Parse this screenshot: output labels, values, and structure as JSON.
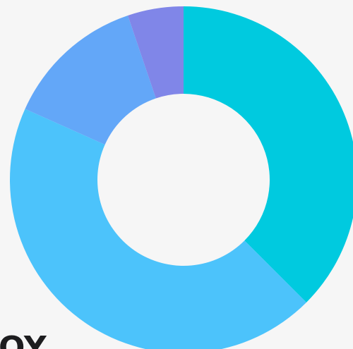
{
  "chart_data": {
    "type": "donut",
    "values": [
      37.5,
      44.2,
      13.1,
      5.2
    ],
    "colors": [
      "#00cadf",
      "#4cc3fb",
      "#63a7f8",
      "#8086e8"
    ],
    "annotation": "OY"
  }
}
